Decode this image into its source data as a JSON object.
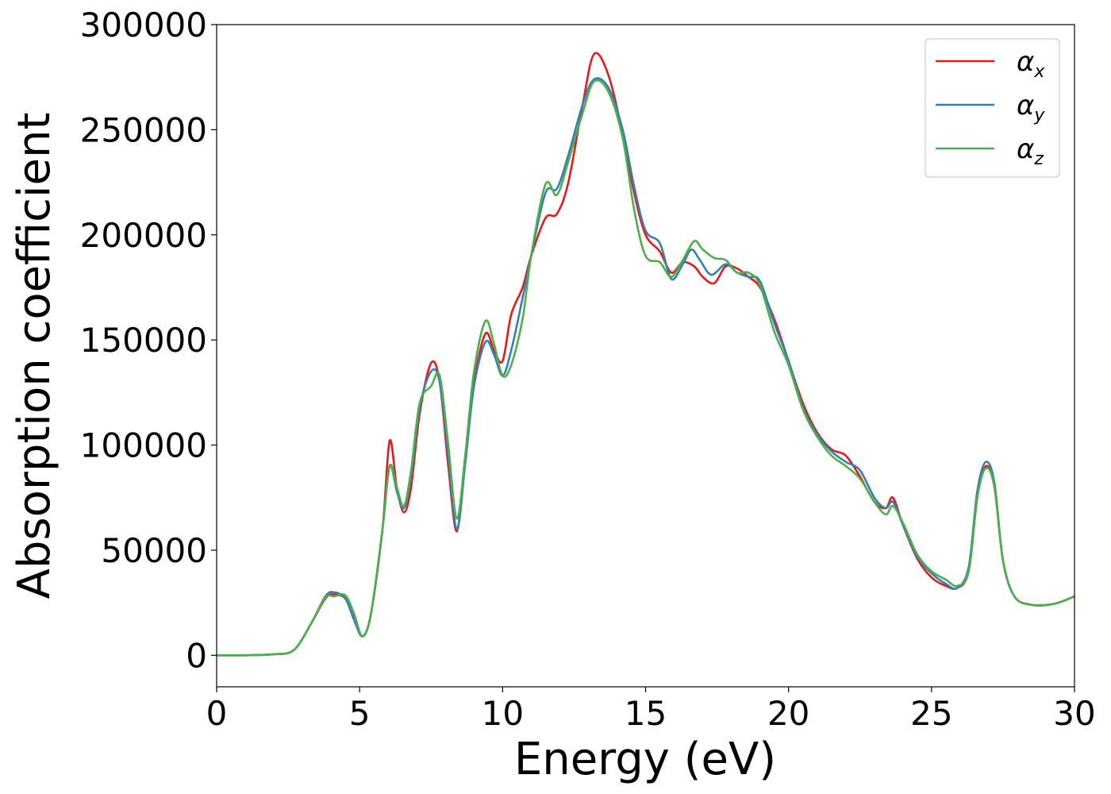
{
  "chart_data": {
    "type": "line",
    "title": "",
    "xlabel": "Energy (eV)",
    "ylabel": "Absorption coefficient",
    "xlim": [
      0,
      30
    ],
    "ylim": [
      -15000,
      300000
    ],
    "xticks": [
      0,
      5,
      10,
      15,
      20,
      25,
      30
    ],
    "xtick_labels": [
      "0",
      "5",
      "10",
      "15",
      "20",
      "25",
      "30"
    ],
    "yticks": [
      0,
      50000,
      100000,
      150000,
      200000,
      250000,
      300000
    ],
    "ytick_labels": [
      "0",
      "50000",
      "100000",
      "150000",
      "200000",
      "250000",
      "300000"
    ],
    "grid": false,
    "legend_position": "top-right",
    "series": [
      {
        "name": "αx",
        "symbol": "α",
        "subscript": "x",
        "color": "#e41a1c",
        "points": [
          [
            0,
            0
          ],
          [
            1,
            0
          ],
          [
            2,
            500
          ],
          [
            2.7,
            2500
          ],
          [
            3.3,
            15000
          ],
          [
            3.8,
            27000
          ],
          [
            4.1,
            29000
          ],
          [
            4.5,
            27000
          ],
          [
            4.8,
            18000
          ],
          [
            5.1,
            9000
          ],
          [
            5.4,
            20000
          ],
          [
            5.8,
            60000
          ],
          [
            6.05,
            102000
          ],
          [
            6.3,
            80000
          ],
          [
            6.55,
            68000
          ],
          [
            6.8,
            80000
          ],
          [
            7.1,
            115000
          ],
          [
            7.5,
            139000
          ],
          [
            7.8,
            130000
          ],
          [
            8.1,
            90000
          ],
          [
            8.4,
            59000
          ],
          [
            8.7,
            95000
          ],
          [
            9.0,
            130000
          ],
          [
            9.4,
            153000
          ],
          [
            9.7,
            145000
          ],
          [
            10.0,
            140000
          ],
          [
            10.3,
            162000
          ],
          [
            10.7,
            175000
          ],
          [
            11.0,
            190000
          ],
          [
            11.5,
            208000
          ],
          [
            11.9,
            210000
          ],
          [
            12.3,
            225000
          ],
          [
            12.8,
            262000
          ],
          [
            13.2,
            286000
          ],
          [
            13.7,
            276000
          ],
          [
            14.2,
            248000
          ],
          [
            14.6,
            220000
          ],
          [
            15.0,
            200000
          ],
          [
            15.5,
            192000
          ],
          [
            15.9,
            182000
          ],
          [
            16.3,
            187000
          ],
          [
            16.7,
            185000
          ],
          [
            17.0,
            180000
          ],
          [
            17.4,
            177000
          ],
          [
            17.8,
            185000
          ],
          [
            18.2,
            184000
          ],
          [
            18.6,
            180000
          ],
          [
            19.0,
            175000
          ],
          [
            19.5,
            160000
          ],
          [
            20.0,
            140000
          ],
          [
            20.5,
            120000
          ],
          [
            21.0,
            106000
          ],
          [
            21.5,
            98000
          ],
          [
            22.0,
            95000
          ],
          [
            22.5,
            85000
          ],
          [
            23.0,
            73000
          ],
          [
            23.4,
            70000
          ],
          [
            23.65,
            75000
          ],
          [
            24.0,
            62000
          ],
          [
            24.5,
            46000
          ],
          [
            25.0,
            37000
          ],
          [
            25.5,
            33000
          ],
          [
            25.9,
            32000
          ],
          [
            26.3,
            40000
          ],
          [
            26.6,
            75000
          ],
          [
            26.9,
            90000
          ],
          [
            27.2,
            80000
          ],
          [
            27.5,
            45000
          ],
          [
            27.9,
            28000
          ],
          [
            28.5,
            24000
          ],
          [
            29.3,
            24500
          ],
          [
            30,
            28000
          ]
        ]
      },
      {
        "name": "αy",
        "symbol": "α",
        "subscript": "y",
        "color": "#377eb8",
        "points": [
          [
            0,
            0
          ],
          [
            1,
            0
          ],
          [
            2,
            500
          ],
          [
            2.7,
            2500
          ],
          [
            3.3,
            15000
          ],
          [
            3.8,
            28000
          ],
          [
            4.1,
            30000
          ],
          [
            4.5,
            27000
          ],
          [
            4.8,
            17000
          ],
          [
            5.1,
            9000
          ],
          [
            5.4,
            20000
          ],
          [
            5.8,
            60000
          ],
          [
            6.05,
            90000
          ],
          [
            6.3,
            78000
          ],
          [
            6.55,
            70000
          ],
          [
            6.8,
            85000
          ],
          [
            7.1,
            118000
          ],
          [
            7.5,
            135000
          ],
          [
            7.8,
            130000
          ],
          [
            8.1,
            95000
          ],
          [
            8.4,
            60000
          ],
          [
            8.7,
            92000
          ],
          [
            9.0,
            128000
          ],
          [
            9.4,
            149000
          ],
          [
            9.7,
            143000
          ],
          [
            10.0,
            133000
          ],
          [
            10.3,
            145000
          ],
          [
            10.7,
            170000
          ],
          [
            11.0,
            190000
          ],
          [
            11.5,
            220000
          ],
          [
            11.9,
            222000
          ],
          [
            12.3,
            238000
          ],
          [
            12.8,
            262000
          ],
          [
            13.2,
            274000
          ],
          [
            13.7,
            270000
          ],
          [
            14.2,
            250000
          ],
          [
            14.6,
            223000
          ],
          [
            15.0,
            202000
          ],
          [
            15.5,
            196000
          ],
          [
            15.9,
            179000
          ],
          [
            16.3,
            186000
          ],
          [
            16.6,
            193000
          ],
          [
            16.9,
            188000
          ],
          [
            17.3,
            181000
          ],
          [
            17.8,
            186000
          ],
          [
            18.2,
            182000
          ],
          [
            18.6,
            180000
          ],
          [
            19.0,
            178000
          ],
          [
            19.5,
            158000
          ],
          [
            20.0,
            140000
          ],
          [
            20.5,
            118000
          ],
          [
            21.0,
            105000
          ],
          [
            21.5,
            97000
          ],
          [
            22.0,
            92000
          ],
          [
            22.5,
            88000
          ],
          [
            23.0,
            75000
          ],
          [
            23.4,
            70000
          ],
          [
            23.65,
            73000
          ],
          [
            24.0,
            62000
          ],
          [
            24.5,
            47000
          ],
          [
            25.0,
            39000
          ],
          [
            25.5,
            34000
          ],
          [
            25.9,
            32000
          ],
          [
            26.3,
            42000
          ],
          [
            26.6,
            78000
          ],
          [
            26.9,
            92000
          ],
          [
            27.2,
            82000
          ],
          [
            27.5,
            45000
          ],
          [
            27.9,
            28000
          ],
          [
            28.5,
            24000
          ],
          [
            29.3,
            24500
          ],
          [
            30,
            28000
          ]
        ]
      },
      {
        "name": "αz",
        "symbol": "α",
        "subscript": "z",
        "color": "#4daf4a",
        "points": [
          [
            0,
            0
          ],
          [
            1,
            0
          ],
          [
            2,
            500
          ],
          [
            2.7,
            2500
          ],
          [
            3.3,
            15000
          ],
          [
            3.8,
            27500
          ],
          [
            4.1,
            28000
          ],
          [
            4.5,
            28500
          ],
          [
            4.8,
            20000
          ],
          [
            5.1,
            9000
          ],
          [
            5.4,
            20000
          ],
          [
            5.8,
            60000
          ],
          [
            6.05,
            90000
          ],
          [
            6.3,
            80000
          ],
          [
            6.55,
            71000
          ],
          [
            6.8,
            88000
          ],
          [
            7.1,
            120000
          ],
          [
            7.5,
            128000
          ],
          [
            7.8,
            133000
          ],
          [
            8.1,
            100000
          ],
          [
            8.4,
            65000
          ],
          [
            8.7,
            96000
          ],
          [
            9.0,
            135000
          ],
          [
            9.4,
            159000
          ],
          [
            9.7,
            148000
          ],
          [
            10.0,
            133000
          ],
          [
            10.3,
            138000
          ],
          [
            10.7,
            160000
          ],
          [
            11.0,
            190000
          ],
          [
            11.5,
            224000
          ],
          [
            11.9,
            219000
          ],
          [
            12.3,
            235000
          ],
          [
            12.8,
            258000
          ],
          [
            13.2,
            273000
          ],
          [
            13.7,
            268000
          ],
          [
            14.2,
            246000
          ],
          [
            14.6,
            212000
          ],
          [
            15.0,
            190000
          ],
          [
            15.5,
            187000
          ],
          [
            15.9,
            180000
          ],
          [
            16.3,
            188000
          ],
          [
            16.7,
            197000
          ],
          [
            17.0,
            193000
          ],
          [
            17.4,
            189000
          ],
          [
            17.8,
            188000
          ],
          [
            18.2,
            182000
          ],
          [
            18.6,
            182000
          ],
          [
            19.0,
            176000
          ],
          [
            19.5,
            154000
          ],
          [
            20.0,
            138000
          ],
          [
            20.5,
            117000
          ],
          [
            21.0,
            104000
          ],
          [
            21.5,
            95000
          ],
          [
            22.0,
            90000
          ],
          [
            22.5,
            84000
          ],
          [
            23.0,
            73000
          ],
          [
            23.4,
            67000
          ],
          [
            23.65,
            71000
          ],
          [
            24.0,
            63000
          ],
          [
            24.5,
            48000
          ],
          [
            25.0,
            40000
          ],
          [
            25.5,
            36000
          ],
          [
            25.9,
            33000
          ],
          [
            26.3,
            40000
          ],
          [
            26.6,
            75000
          ],
          [
            26.9,
            89000
          ],
          [
            27.2,
            80000
          ],
          [
            27.5,
            45000
          ],
          [
            27.9,
            28000
          ],
          [
            28.5,
            24000
          ],
          [
            29.3,
            24500
          ],
          [
            30,
            28000
          ]
        ]
      }
    ]
  }
}
